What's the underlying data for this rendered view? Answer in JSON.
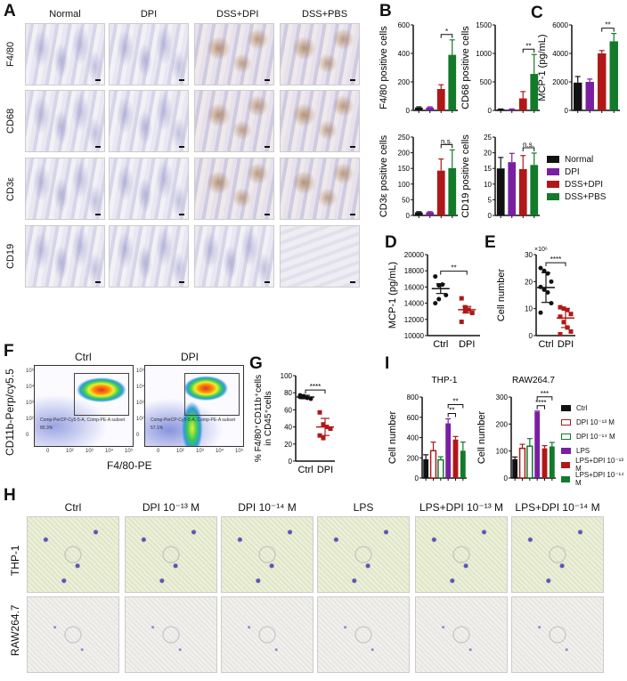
{
  "panels": {
    "A": "A",
    "B": "B",
    "C": "C",
    "D": "D",
    "E": "E",
    "F": "F",
    "G": "G",
    "H": "H",
    "I": "I"
  },
  "panel_a": {
    "columns": [
      "Normal",
      "DPI",
      "DSS+DPI",
      "DSS+PBS"
    ],
    "rows": [
      "F4/80",
      "CD68",
      "CD3ε",
      "CD19"
    ]
  },
  "legend_bcd": [
    {
      "label": "Normal",
      "color": "#111111"
    },
    {
      "label": "DPI",
      "color": "#7b1fa2"
    },
    {
      "label": "DSS+DPI",
      "color": "#b01818"
    },
    {
      "label": "DSS+PBS",
      "color": "#137a2a"
    }
  ],
  "legend_i": [
    {
      "label": "Ctrl",
      "color": "#111111",
      "fill": true
    },
    {
      "label": "DPI 10⁻¹³ M",
      "color": "#b01818",
      "fill": false
    },
    {
      "label": "DPI 10⁻¹⁴ M",
      "color": "#137a2a",
      "fill": false
    },
    {
      "label": "LPS",
      "color": "#7b1fa2",
      "fill": true
    },
    {
      "label": "LPS+DPI 10⁻¹³ M",
      "color": "#b01818",
      "fill": true
    },
    {
      "label": "LPS+DPI 10⁻¹⁴ M",
      "color": "#137a2a",
      "fill": true
    }
  ],
  "panel_f": {
    "titles": [
      "Ctrl",
      "DPI"
    ],
    "ylabel": "CD11b-Perp/cy5.5",
    "xlabel": "F4/80-PE",
    "gate_label": "Comp-PerCP-Cy5-5-A, Comp-PE-A subset",
    "percentages": [
      "80.3%",
      "57.1%"
    ],
    "x_ticks": [
      "0",
      "10²",
      "10³",
      "10⁴",
      "10⁵"
    ],
    "y_ticks": [
      "10⁵",
      "10⁴",
      "10³",
      "10²",
      "0"
    ]
  },
  "panel_h": {
    "columns": [
      "Ctrl",
      "DPI 10⁻¹³ M",
      "DPI 10⁻¹⁴ M",
      "LPS",
      "LPS+DPI 10⁻¹³ M",
      "LPS+DPI 10⁻¹⁴ M"
    ],
    "rows": [
      "THP-1",
      "RAW264.7"
    ]
  },
  "chart_data": [
    {
      "id": "B1",
      "type": "bar",
      "ylabel": "F4/80 positive cells",
      "categories": [
        "Normal",
        "DPI",
        "DSS+DPI",
        "DSS+PBS"
      ],
      "values": [
        20,
        20,
        150,
        390
      ],
      "errors": [
        5,
        5,
        30,
        105
      ],
      "ylim": [
        0,
        600
      ],
      "yticks": [
        0,
        200,
        400,
        600
      ],
      "colors": [
        "#111111",
        "#7b1fa2",
        "#b01818",
        "#137a2a"
      ],
      "sig": [
        {
          "from": 2,
          "to": 3,
          "label": "*"
        }
      ]
    },
    {
      "id": "B2",
      "type": "bar",
      "ylabel": "CD68 positive cells",
      "categories": [
        "Normal",
        "DPI",
        "DSS+DPI",
        "DSS+PBS"
      ],
      "values": [
        20,
        20,
        210,
        640
      ],
      "errors": [
        5,
        5,
        120,
        340
      ],
      "ylim": [
        0,
        1500
      ],
      "yticks": [
        0,
        500,
        1000,
        1500
      ],
      "colors": [
        "#111111",
        "#7b1fa2",
        "#b01818",
        "#137a2a"
      ],
      "sig": [
        {
          "from": 2,
          "to": 3,
          "label": "**"
        }
      ]
    },
    {
      "id": "C",
      "type": "bar",
      "ylabel": "MCP-1 (pg/mL)",
      "categories": [
        "Normal",
        "DPI",
        "DSS+DPI",
        "DSS+PBS"
      ],
      "values": [
        1950,
        2000,
        4000,
        4850
      ],
      "errors": [
        430,
        200,
        200,
        550
      ],
      "ylim": [
        0,
        6000
      ],
      "yticks": [
        0,
        2000,
        4000,
        6000
      ],
      "colors": [
        "#111111",
        "#7b1fa2",
        "#b01818",
        "#137a2a"
      ],
      "sig": [
        {
          "from": 2,
          "to": 3,
          "label": "**"
        }
      ]
    },
    {
      "id": "B3",
      "type": "bar",
      "ylabel": "CD3ε positive cells",
      "categories": [
        "Normal",
        "DPI",
        "DSS+DPI",
        "DSS+PBS"
      ],
      "values": [
        10,
        10,
        143,
        151
      ],
      "errors": [
        2,
        2,
        37,
        58
      ],
      "ylim": [
        0,
        250
      ],
      "yticks": [
        0,
        50,
        100,
        150,
        200,
        250
      ],
      "colors": [
        "#111111",
        "#7b1fa2",
        "#b01818",
        "#137a2a"
      ],
      "sig": [
        {
          "from": 2,
          "to": 3,
          "label": "n.s."
        }
      ]
    },
    {
      "id": "B4",
      "type": "bar",
      "ylabel": "CD19 positive cells",
      "categories": [
        "Normal",
        "DPI",
        "DSS+DPI",
        "DSS+PBS"
      ],
      "values": [
        15,
        17,
        14.8,
        16.1
      ],
      "errors": [
        3.5,
        2.8,
        4.3,
        3.8
      ],
      "ylim": [
        0,
        25
      ],
      "yticks": [
        0,
        5,
        10,
        15,
        20,
        25
      ],
      "colors": [
        "#111111",
        "#7b1fa2",
        "#b01818",
        "#137a2a"
      ],
      "sig": [
        {
          "from": 2,
          "to": 3,
          "label": "n.s."
        }
      ]
    },
    {
      "id": "D",
      "type": "scatter",
      "ylabel": "MCP-1 (pg/mL)",
      "categories": [
        "Ctrl",
        "DPI"
      ],
      "ylim": [
        10000,
        20000
      ],
      "yticks": [
        10000,
        12000,
        14000,
        16000,
        18000,
        20000
      ],
      "series": [
        {
          "values": [
            17300,
            16200,
            16300,
            15000,
            14000,
            14500
          ],
          "mean": 15800,
          "sem": 600,
          "color": "#111111",
          "marker": "circle"
        },
        {
          "values": [
            14600,
            13500,
            13200,
            12800,
            11700,
            13000
          ],
          "mean": 13200,
          "sem": 400,
          "color": "#b01818",
          "marker": "square"
        }
      ],
      "sig": [
        {
          "from": 0,
          "to": 1,
          "label": "**"
        }
      ]
    },
    {
      "id": "E",
      "type": "scatter",
      "ylabel": "Cell number",
      "yunit": "×10⁶",
      "categories": [
        "Ctrl",
        "DPI"
      ],
      "ylim": [
        0,
        30
      ],
      "yticks": [
        0,
        10,
        20,
        30
      ],
      "series": [
        {
          "values": [
            25,
            24,
            23,
            20,
            18,
            17,
            16,
            12,
            8.5
          ],
          "mean": 17.8,
          "sd": 5.5,
          "color": "#111111",
          "marker": "circle"
        },
        {
          "values": [
            10.5,
            10,
            9.5,
            8,
            7,
            5,
            3,
            1.5,
            0.5
          ],
          "mean": 6.5,
          "sd": 3.5,
          "color": "#b01818",
          "marker": "square"
        }
      ],
      "sig": [
        {
          "from": 0,
          "to": 1,
          "label": "****"
        }
      ]
    },
    {
      "id": "G",
      "type": "scatter",
      "ylabel": "% F4/80⁺CD11b⁺cells in CD45⁺cells",
      "categories": [
        "Ctrl",
        "DPI"
      ],
      "ylim": [
        0,
        100
      ],
      "yticks": [
        0,
        20,
        40,
        60,
        80,
        100
      ],
      "series": [
        {
          "values": [
            77,
            75,
            74,
            73,
            75,
            76
          ],
          "mean": 75,
          "sd": 2,
          "color": "#111111",
          "marker": "circle"
        },
        {
          "values": [
            57,
            43,
            40,
            38,
            30,
            27
          ],
          "mean": 40,
          "sd": 10,
          "color": "#b01818",
          "marker": "square"
        }
      ],
      "sig": [
        {
          "from": 0,
          "to": 1,
          "label": "****"
        }
      ]
    },
    {
      "id": "I1",
      "type": "bar",
      "title": "THP-1",
      "ylabel": "Cell number",
      "categories": [
        "Ctrl",
        "DPI 10⁻¹³ M",
        "DPI 10⁻¹⁴ M",
        "LPS",
        "LPS+DPI 10⁻¹³ M",
        "LPS+DPI 10⁻¹⁴ M"
      ],
      "values": [
        185,
        270,
        180,
        540,
        380,
        270
      ],
      "errors": [
        45,
        85,
        30,
        45,
        30,
        85
      ],
      "ylim": [
        0,
        800
      ],
      "yticks": [
        0,
        200,
        400,
        600,
        800
      ],
      "colors": [
        "#111111",
        "#b01818",
        "#137a2a",
        "#7b1fa2",
        "#b01818",
        "#137a2a"
      ],
      "filled": [
        true,
        false,
        false,
        true,
        true,
        true
      ],
      "sig": [
        {
          "from": 3,
          "to": 4,
          "label": "**"
        },
        {
          "from": 3,
          "to": 5,
          "label": "**"
        }
      ]
    },
    {
      "id": "I2",
      "type": "bar",
      "title": "RAW264.7",
      "ylabel": "Cell number",
      "categories": [
        "Ctrl",
        "DPI 10⁻¹³ M",
        "DPI 10⁻¹⁴ M",
        "LPS",
        "LPS+DPI 10⁻¹³ M",
        "LPS+DPI 10⁻¹⁴ M"
      ],
      "values": [
        70,
        110,
        118,
        245,
        110,
        117
      ],
      "errors": [
        8,
        15,
        28,
        3,
        10,
        15
      ],
      "ylim": [
        0,
        300
      ],
      "yticks": [
        0,
        100,
        200,
        300
      ],
      "colors": [
        "#111111",
        "#b01818",
        "#137a2a",
        "#7b1fa2",
        "#b01818",
        "#137a2a"
      ],
      "filled": [
        true,
        false,
        false,
        true,
        true,
        true
      ],
      "sig": [
        {
          "from": 3,
          "to": 4,
          "label": "****"
        },
        {
          "from": 3,
          "to": 5,
          "label": "***"
        }
      ]
    }
  ]
}
